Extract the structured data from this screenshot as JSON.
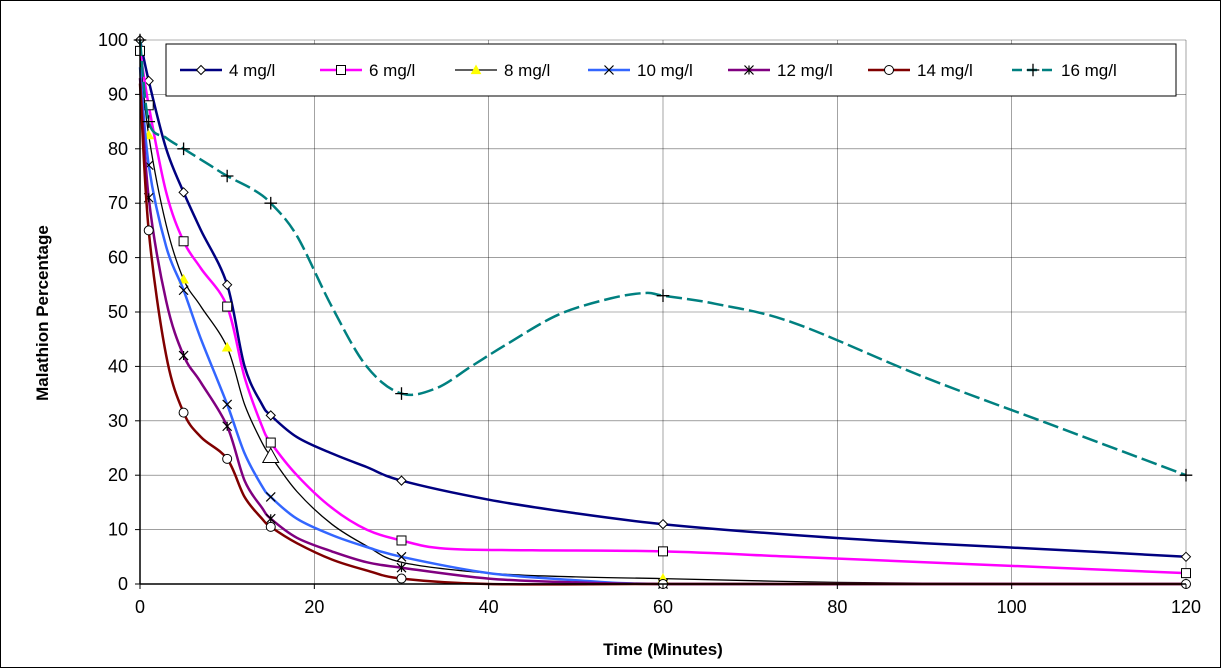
{
  "chart_data": {
    "type": "line",
    "xlabel": "Time (Minutes)",
    "ylabel": "Malathion Percentage",
    "xlim": [
      0,
      120
    ],
    "ylim": [
      0,
      100
    ],
    "xticks": [
      0,
      20,
      40,
      60,
      80,
      100,
      120
    ],
    "yticks": [
      0,
      10,
      20,
      30,
      40,
      50,
      60,
      70,
      80,
      90,
      100
    ],
    "grid": true,
    "legend_position": "top",
    "series": [
      {
        "name": "4 mg/l",
        "color": "#000080",
        "marker": "diamond",
        "points": [
          [
            0,
            100
          ],
          [
            1,
            92.5
          ],
          [
            5,
            72
          ],
          [
            10,
            55
          ],
          [
            15,
            31
          ],
          [
            30,
            19
          ],
          [
            60,
            11
          ],
          [
            120,
            5
          ]
        ],
        "curve": [
          [
            0,
            100
          ],
          [
            1,
            92.5
          ],
          [
            3,
            80
          ],
          [
            5,
            72
          ],
          [
            7,
            65
          ],
          [
            10,
            55
          ],
          [
            12,
            40
          ],
          [
            14,
            33
          ],
          [
            15,
            31
          ],
          [
            18,
            27
          ],
          [
            22,
            24
          ],
          [
            26,
            21.5
          ],
          [
            30,
            19
          ],
          [
            40,
            15.5
          ],
          [
            50,
            13
          ],
          [
            60,
            11
          ],
          [
            75,
            9
          ],
          [
            90,
            7.5
          ],
          [
            105,
            6.3
          ],
          [
            120,
            5
          ]
        ]
      },
      {
        "name": "6 mg/l",
        "color": "#ff00ff",
        "marker": "square",
        "points": [
          [
            0,
            98
          ],
          [
            1,
            88
          ],
          [
            5,
            63
          ],
          [
            10,
            51
          ],
          [
            15,
            26
          ],
          [
            30,
            8
          ],
          [
            60,
            6
          ],
          [
            120,
            2
          ]
        ],
        "curve": [
          [
            0,
            98
          ],
          [
            1,
            88
          ],
          [
            3,
            72
          ],
          [
            5,
            63
          ],
          [
            7,
            58
          ],
          [
            10,
            51
          ],
          [
            12,
            38
          ],
          [
            14,
            29
          ],
          [
            15,
            26
          ],
          [
            18,
            20
          ],
          [
            22,
            14
          ],
          [
            26,
            10
          ],
          [
            30,
            8
          ],
          [
            35,
            6.5
          ],
          [
            45,
            6.2
          ],
          [
            60,
            6
          ],
          [
            75,
            5
          ],
          [
            90,
            4
          ],
          [
            105,
            3
          ],
          [
            120,
            2
          ]
        ]
      },
      {
        "name": "8 mg/l",
        "color": "#000000",
        "marker": "triangle",
        "points": [
          [
            1,
            82.5
          ],
          [
            5,
            56
          ],
          [
            10,
            43.5
          ],
          [
            15,
            23.5
          ],
          [
            60,
            1
          ]
        ],
        "curve": [
          [
            0,
            97
          ],
          [
            1,
            82.5
          ],
          [
            3,
            66
          ],
          [
            5,
            56
          ],
          [
            7,
            51
          ],
          [
            10,
            43.5
          ],
          [
            12,
            33
          ],
          [
            14,
            26
          ],
          [
            15,
            23.5
          ],
          [
            18,
            17
          ],
          [
            22,
            11
          ],
          [
            26,
            7
          ],
          [
            30,
            4
          ],
          [
            40,
            2
          ],
          [
            50,
            1.3
          ],
          [
            60,
            1
          ],
          [
            80,
            0.3
          ],
          [
            100,
            0.1
          ],
          [
            120,
            0
          ]
        ]
      },
      {
        "name": "10 mg/l",
        "color": "#3366ff",
        "marker": "x",
        "points": [
          [
            1,
            77
          ],
          [
            5,
            54
          ],
          [
            10,
            33
          ],
          [
            15,
            16
          ],
          [
            30,
            5
          ],
          [
            60,
            0
          ]
        ],
        "curve": [
          [
            0,
            95
          ],
          [
            1,
            77
          ],
          [
            3,
            62
          ],
          [
            5,
            54
          ],
          [
            7,
            45
          ],
          [
            10,
            33
          ],
          [
            12,
            24
          ],
          [
            14,
            18
          ],
          [
            15,
            16
          ],
          [
            18,
            12
          ],
          [
            22,
            9
          ],
          [
            26,
            6.8
          ],
          [
            30,
            5
          ],
          [
            40,
            2
          ],
          [
            50,
            0.7
          ],
          [
            60,
            0
          ],
          [
            90,
            0
          ],
          [
            120,
            0
          ]
        ]
      },
      {
        "name": "12 mg/l",
        "color": "#800080",
        "marker": "star",
        "points": [
          [
            1,
            71
          ],
          [
            5,
            42
          ],
          [
            10,
            29
          ],
          [
            15,
            12
          ],
          [
            30,
            3
          ],
          [
            60,
            0
          ]
        ],
        "curve": [
          [
            0,
            93
          ],
          [
            1,
            71
          ],
          [
            3,
            52
          ],
          [
            5,
            42
          ],
          [
            7,
            37
          ],
          [
            10,
            29
          ],
          [
            12,
            19
          ],
          [
            14,
            14
          ],
          [
            15,
            12
          ],
          [
            18,
            8.5
          ],
          [
            22,
            6
          ],
          [
            26,
            4
          ],
          [
            30,
            3
          ],
          [
            40,
            1
          ],
          [
            50,
            0.3
          ],
          [
            60,
            0
          ],
          [
            90,
            0
          ],
          [
            120,
            0
          ]
        ]
      },
      {
        "name": "14 mg/l",
        "color": "#800000",
        "marker": "circle",
        "points": [
          [
            1,
            65
          ],
          [
            5,
            31.5
          ],
          [
            10,
            23
          ],
          [
            15,
            10.5
          ],
          [
            30,
            1
          ],
          [
            60,
            0
          ],
          [
            120,
            0
          ]
        ],
        "curve": [
          [
            0,
            92
          ],
          [
            1,
            65
          ],
          [
            3,
            42
          ],
          [
            5,
            31.5
          ],
          [
            7,
            27
          ],
          [
            10,
            23
          ],
          [
            12,
            16
          ],
          [
            14,
            12
          ],
          [
            15,
            10.5
          ],
          [
            18,
            7.5
          ],
          [
            22,
            4.5
          ],
          [
            26,
            2.5
          ],
          [
            30,
            1
          ],
          [
            40,
            0
          ],
          [
            60,
            0
          ],
          [
            90,
            0
          ],
          [
            120,
            0
          ]
        ]
      },
      {
        "name": "16 mg/l",
        "color": "#008080",
        "marker": "plus",
        "dashed": true,
        "points": [
          [
            0,
            100
          ],
          [
            1,
            85
          ],
          [
            5,
            80
          ],
          [
            10,
            75
          ],
          [
            15,
            70
          ],
          [
            30,
            35
          ],
          [
            60,
            53
          ],
          [
            120,
            20
          ]
        ],
        "curve": [
          [
            0,
            100
          ],
          [
            1,
            85
          ],
          [
            3,
            82
          ],
          [
            5,
            80
          ],
          [
            8,
            77
          ],
          [
            10,
            75
          ],
          [
            13,
            72.5
          ],
          [
            15,
            70
          ],
          [
            18,
            64
          ],
          [
            22,
            51
          ],
          [
            26,
            40
          ],
          [
            30,
            35
          ],
          [
            34,
            36
          ],
          [
            38,
            40
          ],
          [
            42,
            44
          ],
          [
            48,
            49.5
          ],
          [
            54,
            52.5
          ],
          [
            58,
            53.5
          ],
          [
            60,
            53
          ],
          [
            66,
            51.5
          ],
          [
            75,
            48
          ],
          [
            90,
            38
          ],
          [
            105,
            29
          ],
          [
            120,
            20
          ]
        ]
      }
    ]
  }
}
